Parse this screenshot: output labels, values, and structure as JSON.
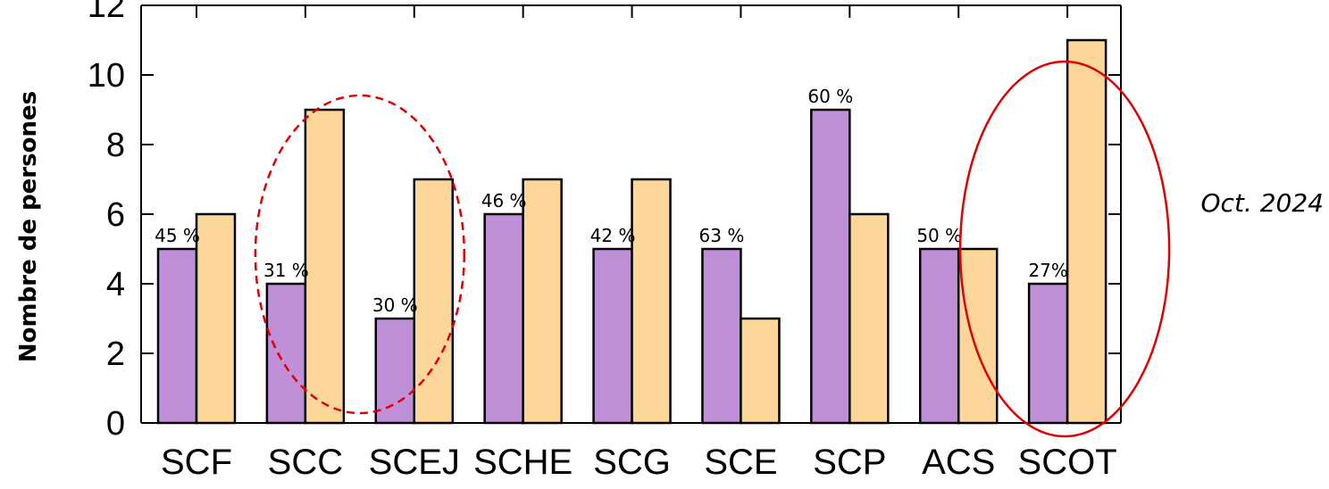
{
  "chart_data": {
    "type": "bar",
    "categories": [
      "SCF",
      "SCC",
      "SCEJ",
      "SCHE",
      "SCG",
      "SCE",
      "SCP",
      "ACS",
      "SCOT"
    ],
    "series": [
      {
        "values": [
          5,
          4,
          3,
          6,
          5,
          5,
          9,
          5,
          4
        ],
        "color": "#bf8fd8"
      },
      {
        "values": [
          6,
          9,
          7,
          7,
          7,
          3,
          6,
          5,
          11
        ],
        "color": "#fdd69a"
      }
    ],
    "percent_labels": [
      "45 %",
      "31 %",
      "30 %",
      "46 %",
      "42 %",
      "63 %",
      "60 %",
      "50 %",
      "27%"
    ],
    "ylabel": "Nombre de persones",
    "yticks": [
      0,
      2,
      4,
      6,
      8,
      10,
      12
    ],
    "ylim": [
      0,
      12
    ],
    "annotation": "Oct. 2024",
    "highlights": [
      {
        "categories": [
          "SCC",
          "SCEJ"
        ],
        "style": "dashed",
        "color": "#e00000"
      },
      {
        "categories": [
          "SCOT"
        ],
        "style": "solid",
        "color": "#e00000"
      }
    ],
    "grid": false
  }
}
